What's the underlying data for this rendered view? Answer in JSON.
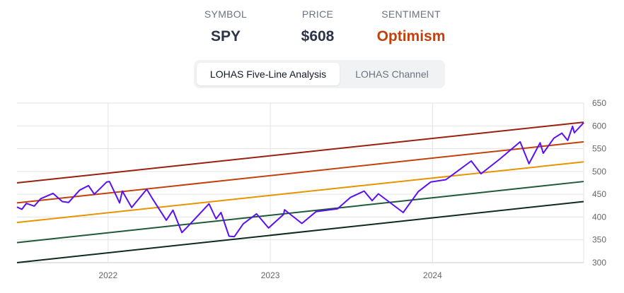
{
  "header": {
    "symbol_label": "SYMBOL",
    "symbol": "SPY",
    "price_label": "PRICE",
    "price": "$608",
    "sentiment_label": "SENTIMENT",
    "sentiment": "Optimism",
    "sentiment_color": "#c2410c"
  },
  "tabs": [
    {
      "label": "LOHAS Five-Line Analysis",
      "active": true
    },
    {
      "label": "LOHAS Channel",
      "active": false
    }
  ],
  "chart_data": {
    "type": "line",
    "xlim": [
      "2021-06-10",
      "2024-12-06"
    ],
    "ylim": [
      300,
      650
    ],
    "y_ticks": [
      300,
      350,
      400,
      450,
      500,
      550,
      600,
      650
    ],
    "x_ticks": [
      "2022",
      "2023",
      "2024"
    ],
    "grid": true,
    "y_axis_side": "right",
    "price_color": "#5a10f0",
    "bands": [
      {
        "start": 475,
        "end": 608,
        "color": "#9a1f0e"
      },
      {
        "start": 431,
        "end": 565,
        "color": "#c2410c"
      },
      {
        "start": 388,
        "end": 521,
        "color": "#e89400"
      },
      {
        "start": 344,
        "end": 478,
        "color": "#1e5a38"
      },
      {
        "start": 300,
        "end": 434,
        "color": "#0d2a1c"
      }
    ],
    "price": [
      [
        "2021-06-10",
        422
      ],
      [
        "2021-06-21",
        417
      ],
      [
        "2021-07-01",
        430
      ],
      [
        "2021-07-19",
        424
      ],
      [
        "2021-08-02",
        440
      ],
      [
        "2021-08-30",
        452
      ],
      [
        "2021-09-20",
        434
      ],
      [
        "2021-10-04",
        432
      ],
      [
        "2021-10-29",
        459
      ],
      [
        "2021-11-18",
        469
      ],
      [
        "2021-12-01",
        450
      ],
      [
        "2021-12-29",
        477
      ],
      [
        "2022-01-04",
        478
      ],
      [
        "2022-01-27",
        431
      ],
      [
        "2022-02-02",
        457
      ],
      [
        "2022-02-23",
        421
      ],
      [
        "2022-03-29",
        461
      ],
      [
        "2022-04-11",
        440
      ],
      [
        "2022-05-12",
        393
      ],
      [
        "2022-05-27",
        415
      ],
      [
        "2022-06-16",
        366
      ],
      [
        "2022-07-01",
        381
      ],
      [
        "2022-08-16",
        429
      ],
      [
        "2022-09-01",
        396
      ],
      [
        "2022-09-12",
        410
      ],
      [
        "2022-09-30",
        358
      ],
      [
        "2022-10-12",
        357
      ],
      [
        "2022-11-01",
        385
      ],
      [
        "2022-12-01",
        407
      ],
      [
        "2022-12-28",
        376
      ],
      [
        "2023-01-31",
        406
      ],
      [
        "2023-02-02",
        416
      ],
      [
        "2023-03-13",
        386
      ],
      [
        "2023-04-14",
        412
      ],
      [
        "2023-06-01",
        418
      ],
      [
        "2023-06-30",
        443
      ],
      [
        "2023-07-31",
        457
      ],
      [
        "2023-08-18",
        436
      ],
      [
        "2023-09-01",
        451
      ],
      [
        "2023-10-27",
        410
      ],
      [
        "2023-11-30",
        456
      ],
      [
        "2023-12-28",
        477
      ],
      [
        "2024-01-31",
        482
      ],
      [
        "2024-03-28",
        523
      ],
      [
        "2024-04-19",
        495
      ],
      [
        "2024-05-31",
        527
      ],
      [
        "2024-07-16",
        565
      ],
      [
        "2024-08-05",
        517
      ],
      [
        "2024-08-30",
        563
      ],
      [
        "2024-09-06",
        540
      ],
      [
        "2024-09-30",
        573
      ],
      [
        "2024-10-18",
        584
      ],
      [
        "2024-10-31",
        568
      ],
      [
        "2024-11-11",
        599
      ],
      [
        "2024-11-15",
        585
      ],
      [
        "2024-12-06",
        607
      ]
    ]
  }
}
